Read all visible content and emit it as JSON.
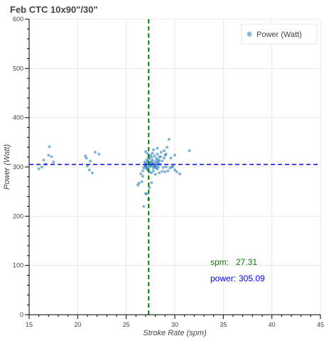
{
  "chart_data": {
    "type": "scatter",
    "title": "Feb CTC 10x90\"/30\"",
    "xlabel": "Stroke Rate (spm)",
    "ylabel": "Power (Watt)",
    "xlim": [
      15,
      45
    ],
    "ylim": [
      0,
      600
    ],
    "x_ticks": [
      "15",
      "20",
      "25",
      "30",
      "35",
      "40",
      "45"
    ],
    "y_ticks": [
      "0",
      "100",
      "200",
      "300",
      "400",
      "500",
      "600"
    ],
    "grid": true,
    "legend_position": "top-right",
    "series": [
      {
        "name": "Power (Watt)",
        "color": "#1f77b4",
        "points": [
          [
            16.0,
            296
          ],
          [
            16.5,
            314
          ],
          [
            17.0,
            324
          ],
          [
            17.1,
            341
          ],
          [
            17.3,
            321
          ],
          [
            16.7,
            306
          ],
          [
            16.3,
            300
          ],
          [
            17.5,
            310
          ],
          [
            20.8,
            322
          ],
          [
            21.0,
            302
          ],
          [
            21.2,
            294
          ],
          [
            21.5,
            288
          ],
          [
            21.8,
            330
          ],
          [
            22.2,
            326
          ],
          [
            21.3,
            312
          ],
          [
            20.9,
            318
          ],
          [
            26.2,
            263
          ],
          [
            26.3,
            267
          ],
          [
            26.5,
            286
          ],
          [
            26.6,
            270
          ],
          [
            26.8,
            220
          ],
          [
            27.0,
            246
          ],
          [
            27.1,
            245
          ],
          [
            27.3,
            234
          ],
          [
            27.4,
            258
          ],
          [
            27.6,
            268
          ],
          [
            26.7,
            292
          ],
          [
            26.8,
            298
          ],
          [
            26.9,
            302
          ],
          [
            27.0,
            304
          ],
          [
            27.0,
            308
          ],
          [
            27.1,
            296
          ],
          [
            27.2,
            299
          ],
          [
            27.2,
            312
          ],
          [
            27.3,
            306
          ],
          [
            27.4,
            300
          ],
          [
            27.4,
            316
          ],
          [
            27.5,
            309
          ],
          [
            27.6,
            302
          ],
          [
            27.6,
            320
          ],
          [
            27.7,
            314
          ],
          [
            27.8,
            306
          ],
          [
            27.8,
            298
          ],
          [
            27.9,
            322
          ],
          [
            28.0,
            311
          ],
          [
            28.0,
            303
          ],
          [
            28.1,
            317
          ],
          [
            28.2,
            308
          ],
          [
            28.2,
            326
          ],
          [
            28.3,
            300
          ],
          [
            28.4,
            313
          ],
          [
            28.4,
            320
          ],
          [
            28.5,
            305
          ],
          [
            28.6,
            330
          ],
          [
            28.7,
            312
          ],
          [
            28.8,
            299
          ],
          [
            28.9,
            318
          ],
          [
            29.0,
            324
          ],
          [
            27.0,
            300
          ],
          [
            27.1,
            305
          ],
          [
            27.3,
            310
          ],
          [
            27.5,
            303
          ],
          [
            27.7,
            307
          ],
          [
            27.9,
            301
          ],
          [
            28.1,
            298
          ],
          [
            28.3,
            309
          ],
          [
            27.2,
            294
          ],
          [
            27.4,
            290
          ],
          [
            27.6,
            288
          ],
          [
            27.8,
            292
          ],
          [
            28.0,
            285
          ],
          [
            28.2,
            296
          ],
          [
            26.9,
            310
          ],
          [
            27.1,
            315
          ],
          [
            27.3,
            320
          ],
          [
            27.5,
            324
          ],
          [
            27.7,
            328
          ],
          [
            27.9,
            300
          ],
          [
            28.1,
            304
          ],
          [
            27.05,
            302
          ],
          [
            27.35,
            307
          ],
          [
            27.65,
            311
          ],
          [
            27.95,
            306
          ],
          [
            28.25,
            314
          ],
          [
            28.55,
            321
          ],
          [
            29.1,
            300
          ],
          [
            29.3,
            292
          ],
          [
            29.5,
            298
          ],
          [
            29.7,
            300
          ],
          [
            30.0,
            294
          ],
          [
            30.2,
            290
          ],
          [
            30.5,
            286
          ],
          [
            29.4,
            356
          ],
          [
            29.2,
            340
          ],
          [
            29.6,
            318
          ],
          [
            30.0,
            324
          ],
          [
            31.5,
            333
          ],
          [
            29.0,
            290
          ],
          [
            28.7,
            291
          ],
          [
            28.4,
            288
          ],
          [
            29.8,
            301
          ],
          [
            28.9,
            333
          ],
          [
            29.1,
            326
          ],
          [
            27.0,
            331
          ],
          [
            26.7,
            281
          ],
          [
            27.2,
            327
          ],
          [
            27.8,
            335
          ],
          [
            28.2,
            338
          ]
        ]
      }
    ],
    "reference_lines": {
      "vertical": {
        "value": 27.31,
        "color": "#008000",
        "style": "dashed"
      },
      "horizontal": {
        "value": 305.09,
        "color": "#0000ff",
        "style": "dashed"
      }
    },
    "annotations": [
      {
        "label": "spm:",
        "value": "27.31",
        "color": "#008000"
      },
      {
        "label": "power:",
        "value": "305.09",
        "color": "#0000ff"
      }
    ]
  }
}
